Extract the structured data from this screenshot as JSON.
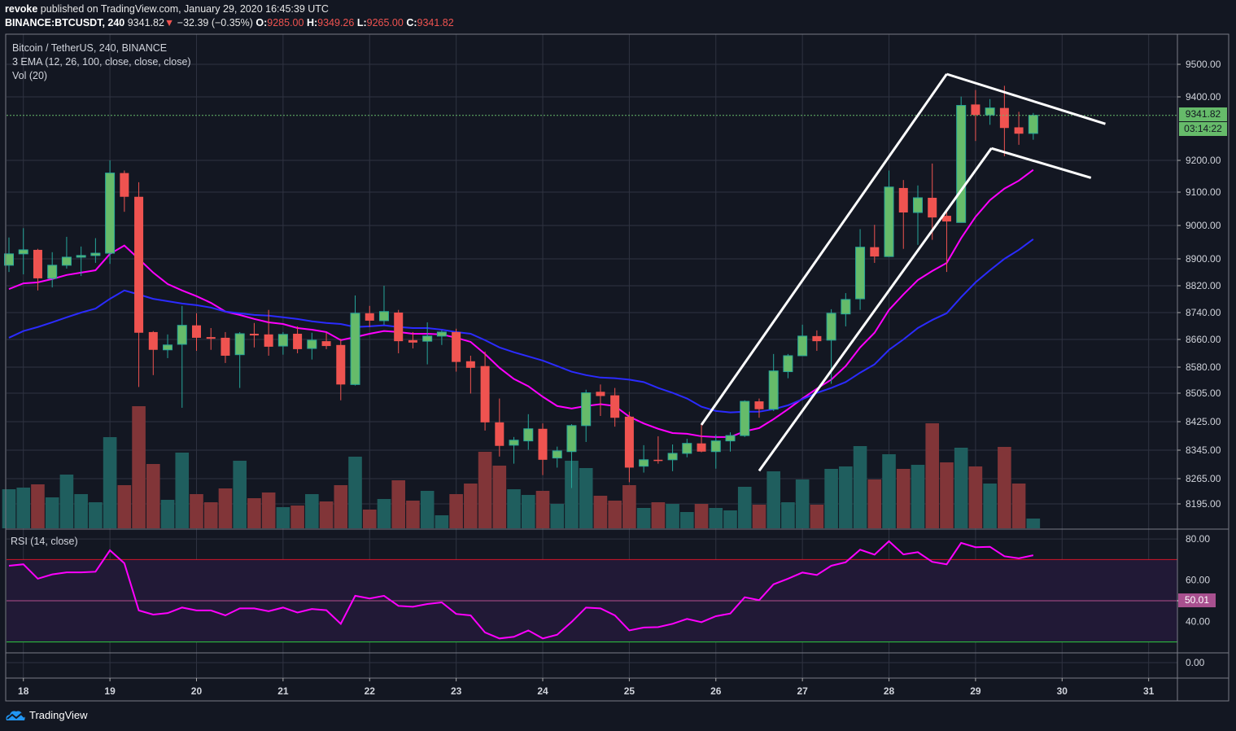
{
  "header": {
    "author": "revoke",
    "published": " published on TradingView.com, January 29, 2020 16:45:39 UTC",
    "symbol": "BINANCE:BTCUSDT, 240",
    "last": "9341.82",
    "arrow": "▼",
    "change": "−32.39 (−0.35%)",
    "o_label": "O:",
    "o": "9285.00",
    "h_label": "H:",
    "h": "9349.26",
    "l_label": "L:",
    "l": "9265.00",
    "c_label": "C:",
    "c": "9341.82"
  },
  "legend": {
    "series": "Bitcoin / TetherUS, 240, BINANCE",
    "ema": "3 EMA (12, 26, 100, close, close, close)",
    "vol": "Vol (20)",
    "rsi": "RSI (14, close)"
  },
  "badges": {
    "last_price": "9341.82",
    "countdown": "03:14:22",
    "rsi_mid": "50.01"
  },
  "footer": {
    "brand": "TradingView"
  },
  "colors": {
    "background": "#131722",
    "up": "#66bb6a",
    "up_border": "#26a69a",
    "down": "#ef5350",
    "vol_up": "#1f5e5e",
    "vol_down": "#813538",
    "ema12": "#ff00ff",
    "ema26": "#2b2bff",
    "rsi": "#ff00ff",
    "rsi_band": "#211936",
    "rsi_upper": "#d3172b",
    "rsi_lower": "#2ecc40",
    "rsi_mid": "#b24f8e",
    "grid": "#2f3341",
    "trendline": "#ffffff"
  },
  "chart_data": {
    "type": "candlestick",
    "title": "Bitcoin / TetherUS, 240, BINANCE",
    "interval_hours": 4,
    "price_axis_labels": [
      "9500.00",
      "9400.00",
      "9200.00",
      "9100.00",
      "9000.00",
      "8900.00",
      "8820.00",
      "8740.00",
      "8660.00",
      "8580.00",
      "8505.00",
      "8425.00",
      "8345.00",
      "8265.00",
      "8195.00"
    ],
    "time_axis_labels": [
      "18",
      "19",
      "20",
      "21",
      "22",
      "23",
      "24",
      "25",
      "26",
      "27",
      "28",
      "29",
      "30",
      "31"
    ],
    "candles_ohlc": [
      [
        8881,
        8964,
        8861,
        8915
      ],
      [
        8915,
        8992,
        8854,
        8927
      ],
      [
        8927,
        8930,
        8806,
        8842
      ],
      [
        8842,
        8920,
        8815,
        8881
      ],
      [
        8881,
        8966,
        8871,
        8905
      ],
      [
        8905,
        8937,
        8849,
        8910
      ],
      [
        8910,
        8962,
        8888,
        8917
      ],
      [
        8917,
        9200,
        8885,
        9160
      ],
      [
        9160,
        9168,
        9041,
        9086
      ],
      [
        9086,
        9131,
        8523,
        8680
      ],
      [
        8682,
        8685,
        8557,
        8630
      ],
      [
        8630,
        8675,
        8606,
        8644
      ],
      [
        8646,
        8760,
        8464,
        8702
      ],
      [
        8702,
        8738,
        8627,
        8665
      ],
      [
        8667,
        8694,
        8630,
        8662
      ],
      [
        8665,
        8682,
        8592,
        8613
      ],
      [
        8616,
        8682,
        8520,
        8677
      ],
      [
        8677,
        8709,
        8637,
        8672
      ],
      [
        8675,
        8748,
        8613,
        8639
      ],
      [
        8641,
        8682,
        8616,
        8675
      ],
      [
        8677,
        8699,
        8620,
        8632
      ],
      [
        8634,
        8680,
        8602,
        8658
      ],
      [
        8655,
        8680,
        8632,
        8641
      ],
      [
        8644,
        8662,
        8485,
        8530
      ],
      [
        8530,
        8791,
        8527,
        8738
      ],
      [
        8738,
        8760,
        8697,
        8716
      ],
      [
        8716,
        8820,
        8704,
        8743
      ],
      [
        8740,
        8748,
        8620,
        8655
      ],
      [
        8658,
        8682,
        8634,
        8651
      ],
      [
        8655,
        8711,
        8588,
        8670
      ],
      [
        8670,
        8687,
        8644,
        8682
      ],
      [
        8682,
        8692,
        8567,
        8595
      ],
      [
        8597,
        8613,
        8504,
        8578
      ],
      [
        8583,
        8625,
        8400,
        8423
      ],
      [
        8423,
        8490,
        8327,
        8357
      ],
      [
        8359,
        8382,
        8307,
        8373
      ],
      [
        8371,
        8446,
        8346,
        8405
      ],
      [
        8405,
        8420,
        8275,
        8318
      ],
      [
        8323,
        8355,
        8296,
        8343
      ],
      [
        8341,
        8418,
        8239,
        8414
      ],
      [
        8414,
        8515,
        8368,
        8506
      ],
      [
        8509,
        8530,
        8441,
        8497
      ],
      [
        8499,
        8520,
        8411,
        8436
      ],
      [
        8439,
        8453,
        8255,
        8296
      ],
      [
        8300,
        8359,
        8282,
        8318
      ],
      [
        8318,
        8384,
        8307,
        8316
      ],
      [
        8318,
        8361,
        8286,
        8336
      ],
      [
        8336,
        8377,
        8325,
        8364
      ],
      [
        8364,
        8420,
        8339,
        8341
      ],
      [
        8341,
        8389,
        8293,
        8371
      ],
      [
        8371,
        8395,
        8341,
        8386
      ],
      [
        8386,
        8485,
        8382,
        8482
      ],
      [
        8482,
        8490,
        8436,
        8460
      ],
      [
        8460,
        8618,
        8455,
        8569
      ],
      [
        8567,
        8618,
        8548,
        8613
      ],
      [
        8613,
        8704,
        8613,
        8670
      ],
      [
        8670,
        8687,
        8627,
        8655
      ],
      [
        8658,
        8750,
        8532,
        8738
      ],
      [
        8736,
        8798,
        8699,
        8779
      ],
      [
        8781,
        8989,
        8748,
        8935
      ],
      [
        8935,
        9002,
        8888,
        8907
      ],
      [
        8907,
        9168,
        8907,
        9116
      ],
      [
        9113,
        9138,
        8930,
        9039
      ],
      [
        9039,
        9121,
        8942,
        9083
      ],
      [
        9083,
        9190,
        8957,
        9024
      ],
      [
        9029,
        9049,
        8861,
        9012
      ],
      [
        9009,
        9401,
        9009,
        9373
      ],
      [
        9376,
        9421,
        9261,
        9343
      ],
      [
        9343,
        9393,
        9312,
        9365
      ],
      [
        9365,
        9434,
        9213,
        9302
      ],
      [
        9304,
        9353,
        9249,
        9284
      ],
      [
        9285,
        9349.26,
        9265,
        9341.82
      ]
    ],
    "ema12": [
      8810,
      8827,
      8830,
      8840,
      8852,
      8859,
      8866,
      8915,
      8940,
      8900,
      8859,
      8825,
      8806,
      8789,
      8769,
      8743,
      8733,
      8721,
      8711,
      8706,
      8694,
      8689,
      8682,
      8658,
      8667,
      8677,
      8685,
      8682,
      8677,
      8677,
      8675,
      8665,
      8653,
      8618,
      8578,
      8546,
      8525,
      8495,
      8469,
      8462,
      8469,
      8474,
      8469,
      8439,
      8420,
      8405,
      8393,
      8391,
      8384,
      8382,
      8382,
      8398,
      8407,
      8432,
      8460,
      8490,
      8518,
      8544,
      8583,
      8637,
      8680,
      8748,
      8794,
      8837,
      8864,
      8888,
      8962,
      9026,
      9076,
      9111,
      9136,
      9170
    ],
    "ema26": [
      8665,
      8685,
      8697,
      8711,
      8726,
      8740,
      8752,
      8781,
      8806,
      8794,
      8781,
      8774,
      8767,
      8762,
      8755,
      8743,
      8738,
      8733,
      8731,
      8726,
      8721,
      8714,
      8709,
      8706,
      8697,
      8699,
      8702,
      8697,
      8694,
      8694,
      8689,
      8682,
      8677,
      8658,
      8637,
      8623,
      8611,
      8599,
      8583,
      8567,
      8557,
      8550,
      8548,
      8544,
      8537,
      8520,
      8506,
      8490,
      8467,
      8455,
      8451,
      8453,
      8453,
      8460,
      8471,
      8488,
      8506,
      8520,
      8537,
      8564,
      8588,
      8630,
      8660,
      8694,
      8718,
      8738,
      8786,
      8830,
      8866,
      8900,
      8927,
      8959
    ],
    "volume_relative": [
      48,
      50,
      54,
      38,
      66,
      42,
      32,
      112,
      53,
      150,
      79,
      35,
      93,
      42,
      32,
      49,
      83,
      37,
      44,
      26,
      28,
      42,
      33,
      53,
      88,
      23,
      36,
      59,
      34,
      46,
      16,
      42,
      55,
      94,
      77,
      48,
      41,
      46,
      30,
      83,
      74,
      40,
      34,
      53,
      25,
      32,
      30,
      20,
      30,
      25,
      22,
      51,
      29,
      70,
      32,
      60,
      29,
      73,
      76,
      101,
      60,
      91,
      73,
      78,
      129,
      81,
      99,
      76,
      55,
      100,
      55,
      12
    ],
    "rsi": [
      67.0,
      67.7,
      60.7,
      62.8,
      63.8,
      63.8,
      64.1,
      74.5,
      68.2,
      45.3,
      43.3,
      44.0,
      46.7,
      45.3,
      45.3,
      42.9,
      46.3,
      46.3,
      44.9,
      46.7,
      44.3,
      46.0,
      45.4,
      38.8,
      52.4,
      51.1,
      52.4,
      47.5,
      47.1,
      48.4,
      49.2,
      43.6,
      42.9,
      34.6,
      31.7,
      32.5,
      35.6,
      31.7,
      33.5,
      39.7,
      46.7,
      46.3,
      42.9,
      35.6,
      37.0,
      37.2,
      38.8,
      41.2,
      39.6,
      42.5,
      43.8,
      51.7,
      50.3,
      58.0,
      60.7,
      63.7,
      62.5,
      67.0,
      68.7,
      74.8,
      72.4,
      78.9,
      72.5,
      73.6,
      68.9,
      67.7,
      78.1,
      76.0,
      76.2,
      71.6,
      70.6,
      72.1
    ],
    "rsi_axis_labels": [
      "80.00",
      "60.00",
      "40.00"
    ],
    "rsi_levels": [
      70,
      50,
      30
    ],
    "lower_pane_axis_label": "0.00",
    "trendlines_index_price": [
      [
        [
          48.0,
          8416
        ],
        [
          65.0,
          9470
        ]
      ],
      [
        [
          52.0,
          8287
        ],
        [
          68.1,
          9238
        ]
      ],
      [
        [
          65.0,
          9470
        ],
        [
          76.0,
          9315
        ]
      ],
      [
        [
          68.1,
          9238
        ],
        [
          75.0,
          9145
        ]
      ]
    ]
  }
}
